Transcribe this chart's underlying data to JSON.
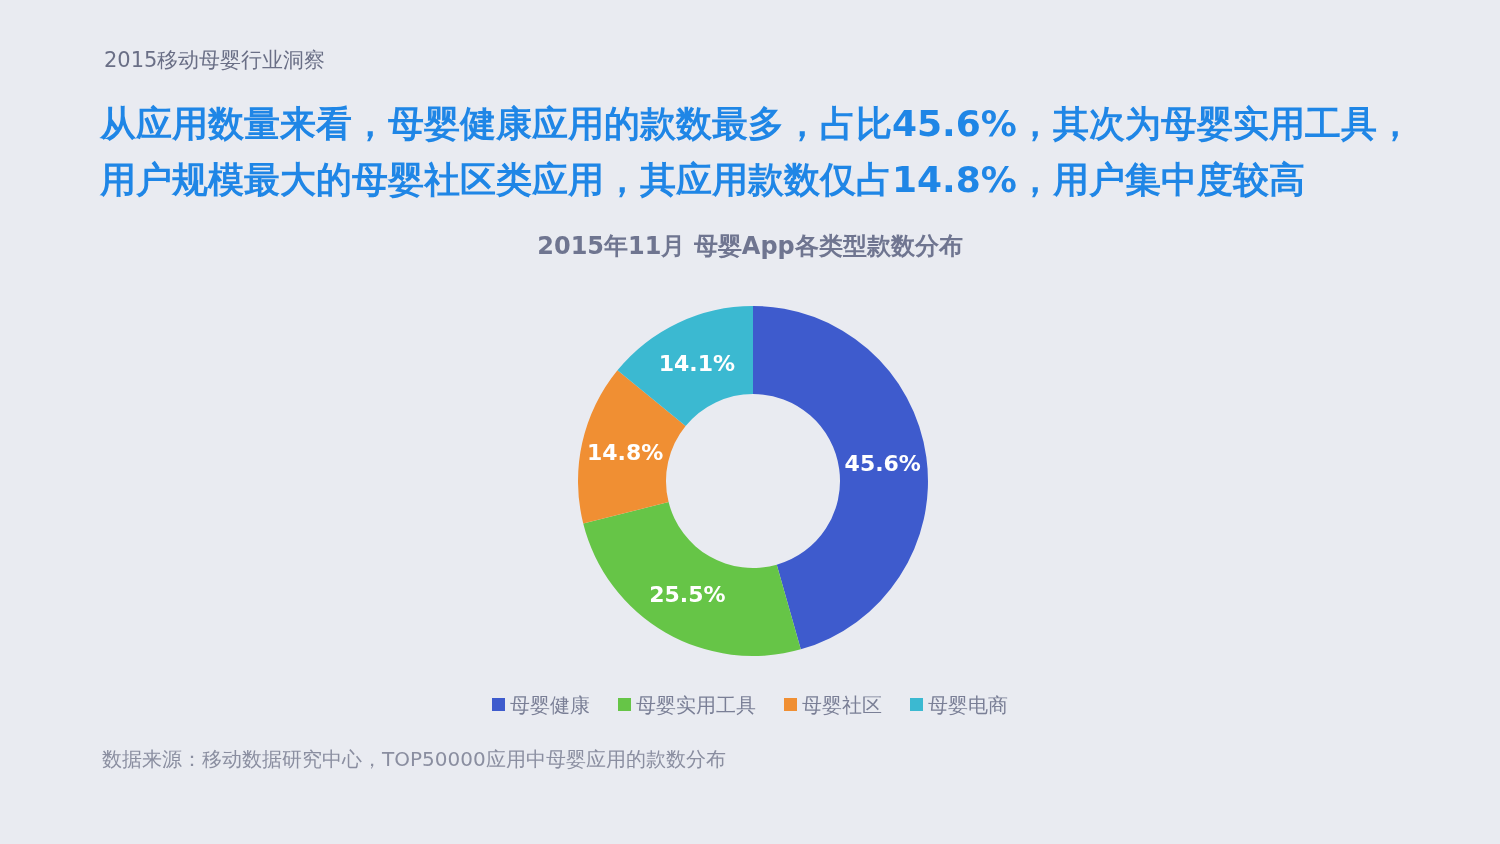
{
  "chart_data": {
    "type": "donut",
    "title": "2015年11月 母婴App各类型款数分布",
    "subtitle": "从应用数量来看，母婴健康应用的款数最多，占比45.6%，其次为母婴实用工具，用户规模最大的母婴社区类应用，其应用款数仅占14.8%，用户集中度较高",
    "annotations": [
      "2015移动母婴行业洞察",
      "数据来源：移动数据研究中心，TOP50000应用中母婴应用的款数分布"
    ],
    "categories": [
      "母婴健康",
      "母婴实用工具",
      "母婴社区",
      "母婴电商"
    ],
    "values": [
      45.6,
      25.5,
      14.8,
      14.1
    ],
    "colors": [
      "#3e5bcd",
      "#66c547",
      "#f08f33",
      "#3bb9d1"
    ],
    "value_labels": [
      "45.6%",
      "25.5%",
      "14.8%",
      "14.1%"
    ],
    "legend": "bottom"
  }
}
